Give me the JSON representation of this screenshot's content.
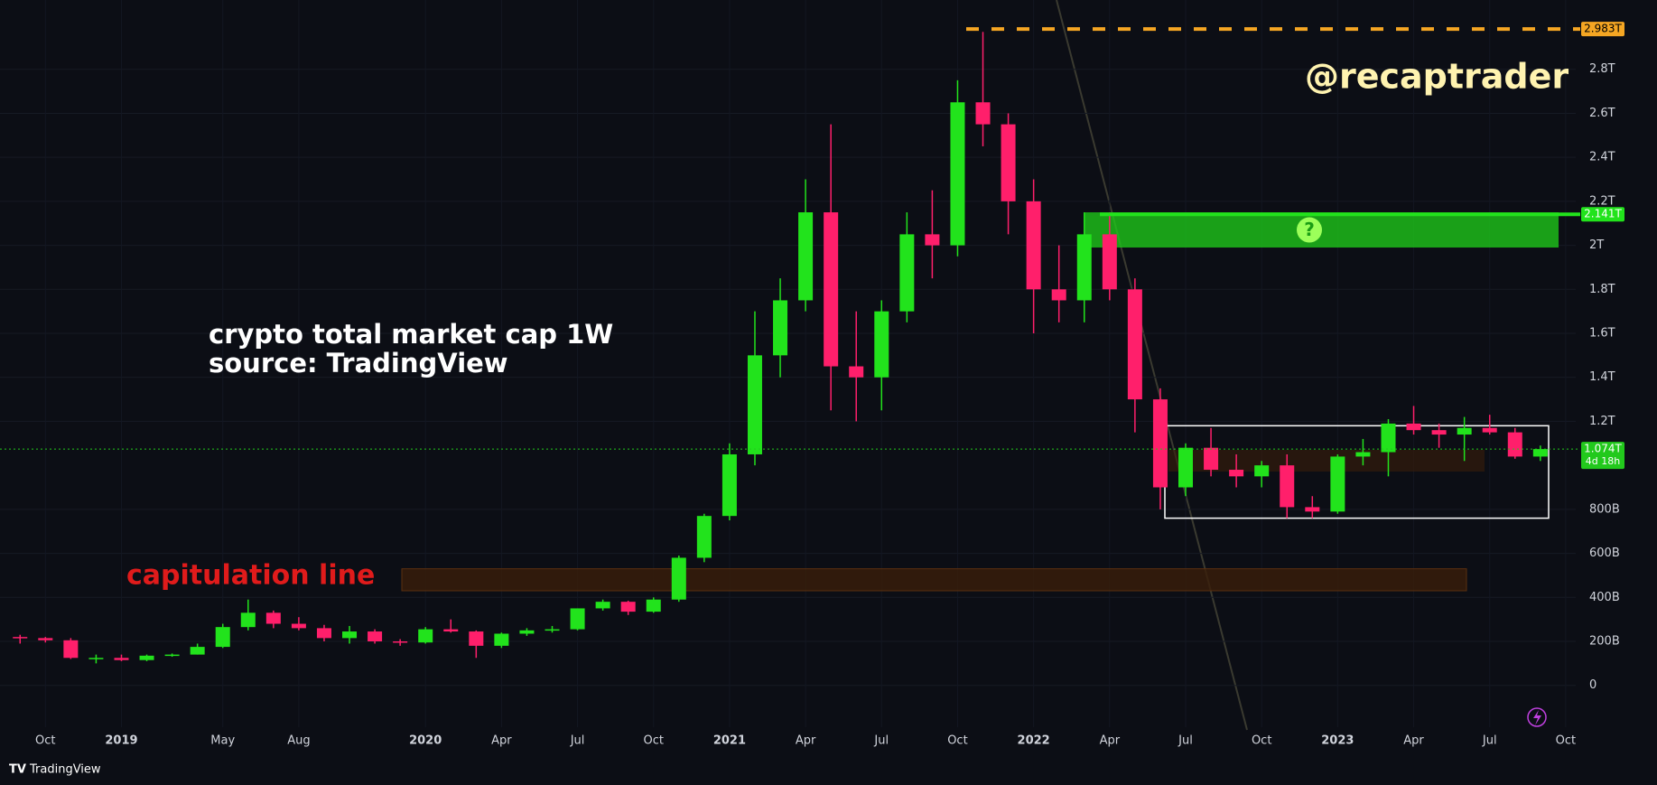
{
  "chart_data": {
    "type": "candlestick",
    "title": "crypto total market cap 1W",
    "subtitle": "source: TradingView",
    "watermark": "@recaptrader",
    "up_color": "#22e31c",
    "down_color": "#ff1f6b",
    "categories": [
      "Sep",
      "Oct",
      "Nov",
      "Dec",
      "2019",
      "Feb",
      "Mar",
      "Apr",
      "May",
      "Jun",
      "Jul",
      "Aug",
      "Sep",
      "Oct",
      "Nov",
      "Dec",
      "2020",
      "Feb",
      "Mar",
      "Apr",
      "May",
      "Jun",
      "Jul",
      "Aug",
      "Sep",
      "Oct",
      "Nov",
      "Dec",
      "2021",
      "Feb",
      "Mar",
      "Apr",
      "May",
      "Jun",
      "Jul",
      "Aug",
      "Sep",
      "Oct",
      "Nov",
      "Dec",
      "2022",
      "Feb",
      "Mar",
      "Apr",
      "May",
      "Jun",
      "Jul",
      "Aug",
      "Sep",
      "Oct",
      "Nov",
      "Dec",
      "2023",
      "Feb",
      "Mar",
      "Apr",
      "May",
      "Jun",
      "Jul",
      "Aug",
      "Sep",
      "Oct"
    ],
    "printed_categories": [
      false,
      true,
      false,
      false,
      true,
      false,
      false,
      false,
      true,
      false,
      false,
      true,
      false,
      false,
      false,
      false,
      true,
      false,
      false,
      true,
      false,
      false,
      true,
      false,
      false,
      true,
      false,
      false,
      true,
      false,
      false,
      true,
      false,
      false,
      true,
      false,
      false,
      true,
      false,
      false,
      true,
      false,
      false,
      true,
      false,
      false,
      true,
      false,
      false,
      true,
      false,
      false,
      true,
      false,
      false,
      true,
      false,
      false,
      true,
      false,
      false,
      true
    ],
    "open": [
      220,
      215,
      205,
      125,
      125,
      115,
      135,
      140,
      175,
      265,
      330,
      280,
      260,
      215,
      245,
      200,
      195,
      255,
      245,
      180,
      235,
      250,
      255,
      350,
      380,
      335,
      390,
      580,
      770,
      1050,
      1500,
      1750,
      2150,
      1450,
      1400,
      1700,
      2050,
      2000,
      2650,
      2550,
      2200,
      1800,
      1750,
      2050,
      1800,
      1300,
      900,
      1080,
      980,
      950,
      1000,
      810,
      790,
      1040,
      1060,
      1190,
      1160,
      1140,
      1170,
      1150,
      1040,
      null
    ],
    "high": [
      230,
      220,
      215,
      140,
      140,
      140,
      145,
      190,
      280,
      390,
      340,
      310,
      275,
      270,
      255,
      210,
      265,
      300,
      250,
      240,
      260,
      270,
      350,
      390,
      385,
      400,
      590,
      780,
      1100,
      1700,
      1850,
      2300,
      2550,
      1700,
      1750,
      2150,
      2250,
      2750,
      2970,
      2600,
      2300,
      2000,
      2150,
      2150,
      1850,
      1350,
      1100,
      1170,
      1050,
      1020,
      1050,
      860,
      1050,
      1120,
      1210,
      1270,
      1190,
      1220,
      1230,
      1170,
      1090,
      null
    ],
    "low": [
      190,
      195,
      120,
      100,
      110,
      110,
      130,
      140,
      170,
      250,
      260,
      250,
      200,
      190,
      190,
      180,
      190,
      240,
      125,
      170,
      225,
      240,
      250,
      340,
      320,
      330,
      380,
      560,
      750,
      1000,
      1400,
      1700,
      1250,
      1200,
      1250,
      1650,
      1850,
      1950,
      2450,
      2050,
      1600,
      1650,
      1650,
      1750,
      1150,
      800,
      860,
      950,
      900,
      900,
      760,
      760,
      780,
      1000,
      950,
      1140,
      1080,
      1020,
      1140,
      1030,
      1020,
      null
    ],
    "close": [
      215,
      205,
      125,
      125,
      115,
      135,
      140,
      175,
      265,
      330,
      280,
      260,
      215,
      245,
      200,
      195,
      255,
      245,
      180,
      235,
      250,
      255,
      350,
      380,
      335,
      390,
      580,
      770,
      1050,
      1500,
      1750,
      2150,
      1450,
      1400,
      1700,
      2050,
      2000,
      2650,
      2550,
      2200,
      1800,
      1750,
      2050,
      1800,
      1300,
      900,
      1080,
      980,
      950,
      1000,
      810,
      790,
      1040,
      1060,
      1190,
      1160,
      1140,
      1170,
      1150,
      1040,
      1074,
      null
    ],
    "ylim": [
      -190,
      3115
    ],
    "yticks": [
      0,
      {
        "value": 200,
        "label": "200B"
      },
      {
        "value": 400,
        "label": "400B"
      },
      {
        "value": 600,
        "label": "600B"
      },
      {
        "value": 800,
        "label": "800B"
      },
      {
        "value": 1200,
        "label": "1.2T"
      },
      {
        "value": 1400,
        "label": "1.4T"
      },
      {
        "value": 1600,
        "label": "1.6T"
      },
      {
        "value": 1800,
        "label": "1.8T"
      },
      {
        "value": 2000,
        "label": "2T"
      },
      {
        "value": 2200,
        "label": "2.2T"
      },
      {
        "value": 2400,
        "label": "2.4T"
      },
      {
        "value": 2600,
        "label": "2.6T"
      },
      {
        "value": 2800,
        "label": "2.8T"
      }
    ],
    "price_lines": [
      {
        "value": 2983,
        "label": "2.983T",
        "color": "#f5a623",
        "style": "dashed"
      },
      {
        "value": 2141,
        "label": "2.141T",
        "color": "#22e31c",
        "style": "solid"
      },
      {
        "value": 1074,
        "label": "1.074T",
        "color": "#22c91c",
        "style": "dotted",
        "countdown": "4d 18h"
      }
    ],
    "zones": [
      {
        "name": "capitulation line",
        "ylow": 430,
        "yhigh": 530,
        "color": "#e01b1b"
      },
      {
        "name": "?",
        "ylow": 1990,
        "yhigh": 2150,
        "color": "#1fd11a"
      },
      {
        "ylow": 760,
        "yhigh": 1180,
        "color": "#ffffff"
      }
    ]
  },
  "footer": {
    "brand": "TradingView"
  }
}
